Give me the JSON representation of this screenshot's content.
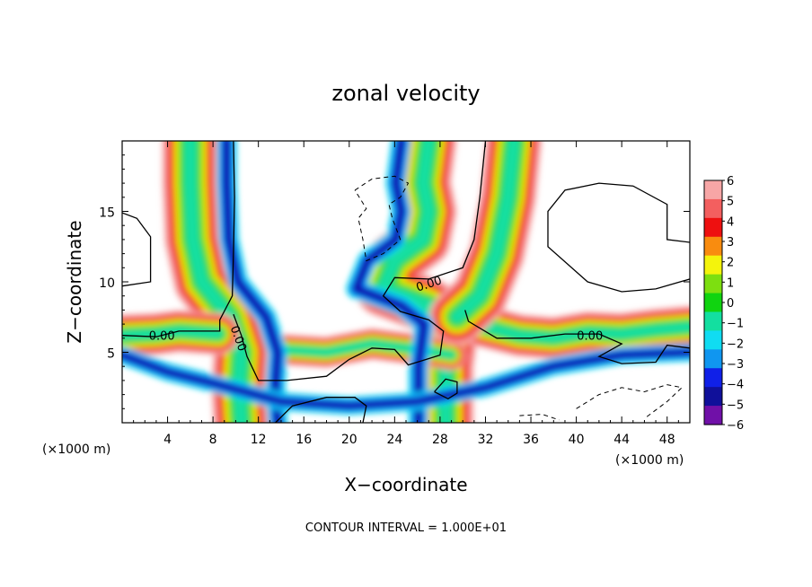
{
  "chart_data": {
    "type": "heatmap",
    "title": "zonal velocity",
    "xlabel": "X−coordinate",
    "ylabel": "Z−coordinate",
    "x_unit_label": "(×1000 m)",
    "xlim": [
      0,
      50
    ],
    "ylim": [
      0,
      20
    ],
    "x_ticks": [
      4,
      8,
      12,
      16,
      20,
      24,
      28,
      32,
      36,
      40,
      44,
      48
    ],
    "y_ticks": [
      5,
      10,
      15
    ],
    "footnote": "CONTOUR INTERVAL = 1.000E+01",
    "colorbar": {
      "ticks": [
        6,
        5,
        4,
        3,
        2,
        1,
        0,
        -1,
        -2,
        -3,
        -4,
        -5,
        -6
      ],
      "tick_labels": [
        "6",
        "5",
        "4",
        "3",
        "2",
        "1",
        "0",
        "−1",
        "−2",
        "−3",
        "−4",
        "−5",
        "−6"
      ],
      "colors": [
        "#f7a6a6",
        "#f35f5f",
        "#ee1010",
        "#f98c0f",
        "#f4f40c",
        "#7ddf10",
        "#10d410",
        "#13dfa0",
        "#10dcf2",
        "#1096f0",
        "#1020e8",
        "#10109a",
        "#7010a8"
      ]
    },
    "features": {
      "plume_left": [
        [
          6,
          20
        ],
        [
          6,
          17
        ],
        [
          6.2,
          13
        ],
        [
          7,
          10
        ],
        [
          9.5,
          7.5
        ],
        [
          10.5,
          5
        ],
        [
          10.3,
          2.5
        ],
        [
          10.5,
          0
        ]
      ],
      "plume_right": [
        [
          27,
          20
        ],
        [
          26.5,
          17
        ],
        [
          27,
          15
        ],
        [
          26.5,
          13
        ],
        [
          24,
          11.5
        ],
        [
          23,
          9.5
        ],
        [
          27,
          8.3
        ],
        [
          29,
          7
        ],
        [
          28.5,
          4
        ],
        [
          28.5,
          0
        ]
      ],
      "band_left": [
        [
          0,
          6.2
        ],
        [
          3,
          6.3
        ],
        [
          5,
          6.5
        ],
        [
          8.5,
          6.3
        ]
      ],
      "band_right": [
        [
          31,
          7
        ],
        [
          35,
          6.2
        ],
        [
          38,
          6
        ],
        [
          41,
          6.4
        ],
        [
          44,
          6.3
        ],
        [
          47,
          6.6
        ],
        [
          50,
          6.8
        ]
      ],
      "band_center": [
        [
          14,
          5.2
        ],
        [
          18,
          5
        ],
        [
          22,
          5.6
        ],
        [
          26,
          5.2
        ],
        [
          29,
          4.8
        ]
      ],
      "branch_right": [
        [
          29.5,
          7.5
        ],
        [
          31.5,
          9
        ],
        [
          33,
          12
        ],
        [
          34,
          16
        ],
        [
          34.5,
          20
        ]
      ]
    },
    "contour_labels": [
      {
        "x": 3.5,
        "y": 6.2,
        "text": "0.00"
      },
      {
        "x": 10.3,
        "y": 6.0,
        "text": "0.00"
      },
      {
        "x": 27.0,
        "y": 9.9,
        "text": "0.00"
      },
      {
        "x": 41.2,
        "y": 6.2,
        "text": "0.00"
      }
    ],
    "contours_solid": [
      [
        [
          9.8,
          20
        ],
        [
          9.9,
          16
        ],
        [
          9.8,
          12
        ],
        [
          9.7,
          9
        ],
        [
          8.6,
          7.3
        ],
        [
          8.6,
          6.5
        ],
        [
          5,
          6.5
        ],
        [
          3,
          6.1
        ],
        [
          0,
          6.2
        ]
      ],
      [
        [
          9.8,
          7.7
        ],
        [
          10.5,
          6.2
        ],
        [
          11,
          4.7
        ],
        [
          12,
          3
        ],
        [
          14.5,
          3
        ],
        [
          18,
          3.3
        ],
        [
          20,
          4.5
        ],
        [
          22,
          5.3
        ],
        [
          24,
          5.2
        ],
        [
          25.2,
          4.1
        ],
        [
          28,
          4.8
        ],
        [
          28.3,
          6.5
        ],
        [
          27,
          7.3
        ],
        [
          24.5,
          7.9
        ],
        [
          23,
          9
        ],
        [
          24,
          10.3
        ],
        [
          27,
          10.2
        ],
        [
          30,
          11
        ],
        [
          31,
          13
        ],
        [
          31.5,
          16
        ],
        [
          32,
          20
        ]
      ],
      [
        [
          30.2,
          8
        ],
        [
          30.5,
          7.2
        ],
        [
          33,
          6
        ],
        [
          36,
          6
        ],
        [
          39,
          6.3
        ],
        [
          42,
          6.3
        ],
        [
          44,
          5.6
        ],
        [
          42,
          4.7
        ],
        [
          44,
          4.2
        ],
        [
          47,
          4.3
        ],
        [
          48,
          5.5
        ],
        [
          50,
          5.3
        ]
      ],
      [
        [
          0,
          14.9
        ],
        [
          1.3,
          14.5
        ],
        [
          2.5,
          13.2
        ],
        [
          2.5,
          10
        ],
        [
          0,
          9.7
        ]
      ],
      [
        [
          50,
          10.2
        ],
        [
          47,
          9.5
        ],
        [
          44,
          9.3
        ],
        [
          41,
          10
        ],
        [
          37.5,
          12.5
        ],
        [
          37.5,
          15
        ],
        [
          39,
          16.5
        ],
        [
          42,
          17
        ],
        [
          45,
          16.8
        ],
        [
          48,
          15.5
        ],
        [
          48,
          13
        ],
        [
          50,
          12.8
        ]
      ],
      [
        [
          13.5,
          0
        ],
        [
          15,
          1.2
        ],
        [
          18,
          1.8
        ],
        [
          20.5,
          1.8
        ],
        [
          21.5,
          1.2
        ],
        [
          21.2,
          0
        ]
      ],
      [
        [
          27.5,
          2.2
        ],
        [
          28.5,
          3.1
        ],
        [
          29.5,
          2.9
        ],
        [
          29.5,
          2.1
        ],
        [
          28.7,
          1.7
        ],
        [
          27.5,
          2.2
        ]
      ]
    ],
    "contours_dashed": [
      [
        [
          20.5,
          16.5
        ],
        [
          22,
          17.3
        ],
        [
          24,
          17.5
        ],
        [
          25.2,
          17
        ],
        [
          24.5,
          16
        ],
        [
          23.5,
          15.5
        ],
        [
          23.8,
          14.5
        ],
        [
          24.5,
          13
        ],
        [
          23,
          12
        ],
        [
          21.5,
          11.5
        ],
        [
          21.2,
          13
        ],
        [
          20.8,
          14.5
        ],
        [
          21.5,
          15.2
        ],
        [
          20.5,
          16.5
        ]
      ],
      [
        [
          35,
          0.5
        ],
        [
          37,
          0.6
        ],
        [
          38.5,
          0.2
        ]
      ],
      [
        [
          40,
          1
        ],
        [
          42,
          2
        ],
        [
          44,
          2.5
        ],
        [
          46,
          2.2
        ],
        [
          48,
          2.7
        ],
        [
          49.3,
          2.5
        ],
        [
          48,
          1.5
        ],
        [
          46,
          0.3
        ]
      ]
    ]
  }
}
